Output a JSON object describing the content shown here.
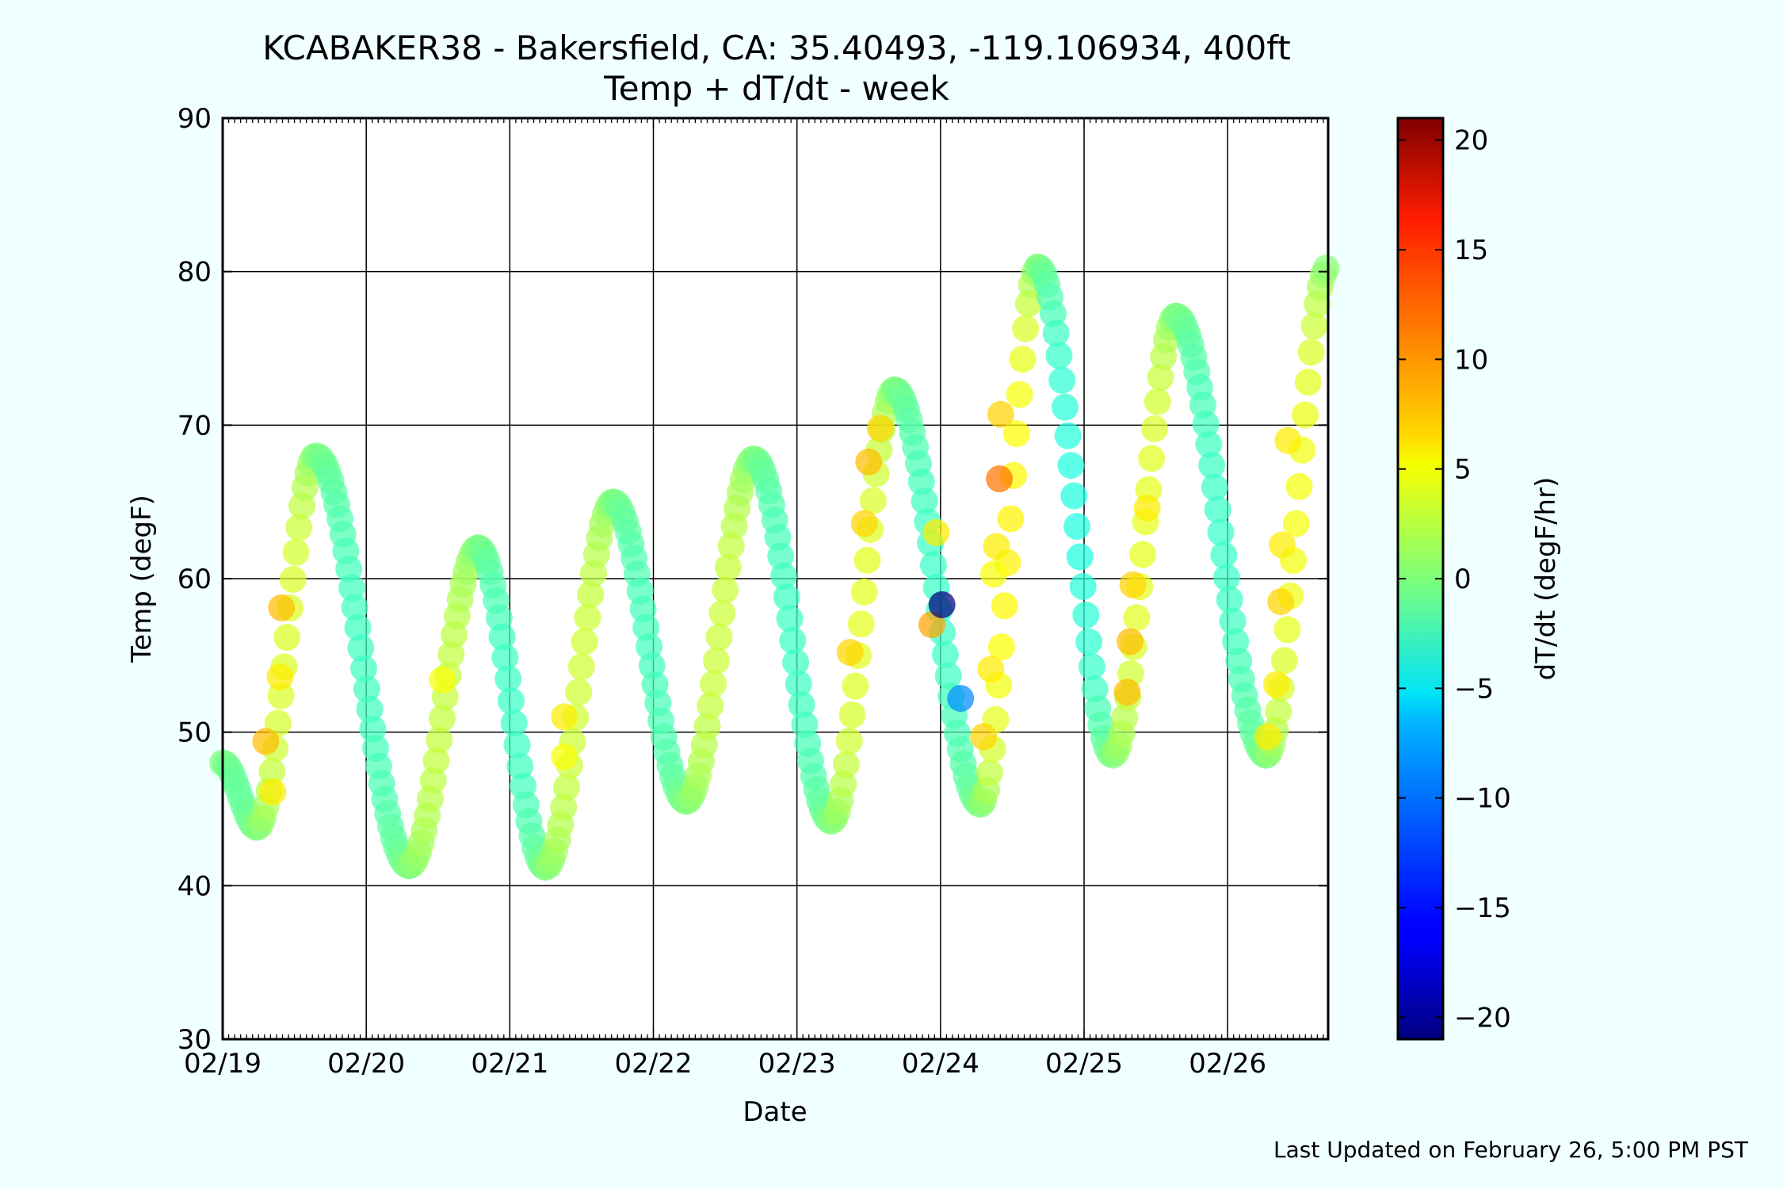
{
  "page": {
    "background": "#f0ffff",
    "footer": "Last Updated on February 26, 5:00 PM PST"
  },
  "chart_data": {
    "type": "scatter",
    "title": "KCABAKER38 - Bakersfield, CA: 35.40493, -119.106934, 400ft",
    "subtitle": "Temp + dT/dt - week",
    "xlabel": "Date",
    "ylabel": "Temp (degF)",
    "x_unit": "days since 02/19 00:00",
    "xlim": [
      0,
      7.7
    ],
    "ylim": [
      30,
      90
    ],
    "x_ticks": [
      {
        "value": 0,
        "label": "02/19"
      },
      {
        "value": 1,
        "label": "02/20"
      },
      {
        "value": 2,
        "label": "02/21"
      },
      {
        "value": 3,
        "label": "02/22"
      },
      {
        "value": 4,
        "label": "02/23"
      },
      {
        "value": 5,
        "label": "02/24"
      },
      {
        "value": 6,
        "label": "02/25"
      },
      {
        "value": 7,
        "label": "02/26"
      }
    ],
    "y_ticks": [
      30,
      40,
      50,
      60,
      70,
      80,
      90
    ],
    "grid": true,
    "colorbar": {
      "label": "dT/dt (degF/hr)",
      "range": [
        -21,
        21
      ],
      "ticks": [
        -20,
        -15,
        -10,
        -5,
        0,
        5,
        10,
        15,
        20
      ],
      "colormap": "jet"
    },
    "series": [
      {
        "x_knots": [
          0,
          0.24,
          0.65,
          1.3,
          1.78,
          2.25,
          2.72,
          3.23,
          3.7,
          4.24,
          4.68,
          5.28,
          5.68,
          6.2,
          6.64,
          7.27,
          7.7
        ],
        "y_knots": [
          48,
          43.8,
          68,
          41.3,
          62,
          41.2,
          65,
          45.5,
          67.8,
          44.2,
          72.3,
          45.3,
          80.3,
          48.5,
          77.1,
          48.5,
          80.3
        ],
        "sample_step_days": 0.0208
      }
    ],
    "outlier_points": [
      {
        "x": 0.3,
        "y": 49.4,
        "dTdt": 8
      },
      {
        "x": 0.35,
        "y": 46.1,
        "dTdt": 6
      },
      {
        "x": 0.41,
        "y": 58.1,
        "dTdt": 8
      },
      {
        "x": 0.4,
        "y": 53.6,
        "dTdt": 6
      },
      {
        "x": 1.53,
        "y": 53.4,
        "dTdt": 5
      },
      {
        "x": 2.38,
        "y": 51,
        "dTdt": 6
      },
      {
        "x": 2.38,
        "y": 48.4,
        "dTdt": 5
      },
      {
        "x": 4.37,
        "y": 55.2,
        "dTdt": 7
      },
      {
        "x": 4.47,
        "y": 63.6,
        "dTdt": 7
      },
      {
        "x": 4.58,
        "y": 69.8,
        "dTdt": 7
      },
      {
        "x": 4.5,
        "y": 67.6,
        "dTdt": 8
      },
      {
        "x": 4.94,
        "y": 57,
        "dTdt": 9
      },
      {
        "x": 4.97,
        "y": 63,
        "dTdt": 6
      },
      {
        "x": 5.01,
        "y": 58.3,
        "dTdt": -21
      },
      {
        "x": 5.14,
        "y": 52.2,
        "dTdt": -10
      },
      {
        "x": 5.3,
        "y": 49.7,
        "dTdt": 7
      },
      {
        "x": 5.35,
        "y": 54.1,
        "dTdt": 6
      },
      {
        "x": 5.39,
        "y": 62.1,
        "dTdt": 6
      },
      {
        "x": 5.42,
        "y": 70.7,
        "dTdt": 7
      },
      {
        "x": 5.41,
        "y": 66.5,
        "dTdt": 11
      },
      {
        "x": 5.37,
        "y": 60.3,
        "dTdt": 5
      },
      {
        "x": 6.3,
        "y": 52.6,
        "dTdt": 8
      },
      {
        "x": 6.32,
        "y": 55.9,
        "dTdt": 8
      },
      {
        "x": 6.34,
        "y": 59.6,
        "dTdt": 7
      },
      {
        "x": 6.44,
        "y": 64.6,
        "dTdt": 6
      },
      {
        "x": 7.37,
        "y": 58.5,
        "dTdt": 7
      },
      {
        "x": 7.34,
        "y": 53.1,
        "dTdt": 6
      },
      {
        "x": 7.38,
        "y": 62.2,
        "dTdt": 6
      },
      {
        "x": 7.42,
        "y": 69,
        "dTdt": 6
      },
      {
        "x": 7.28,
        "y": 49.7,
        "dTdt": 6
      }
    ]
  }
}
